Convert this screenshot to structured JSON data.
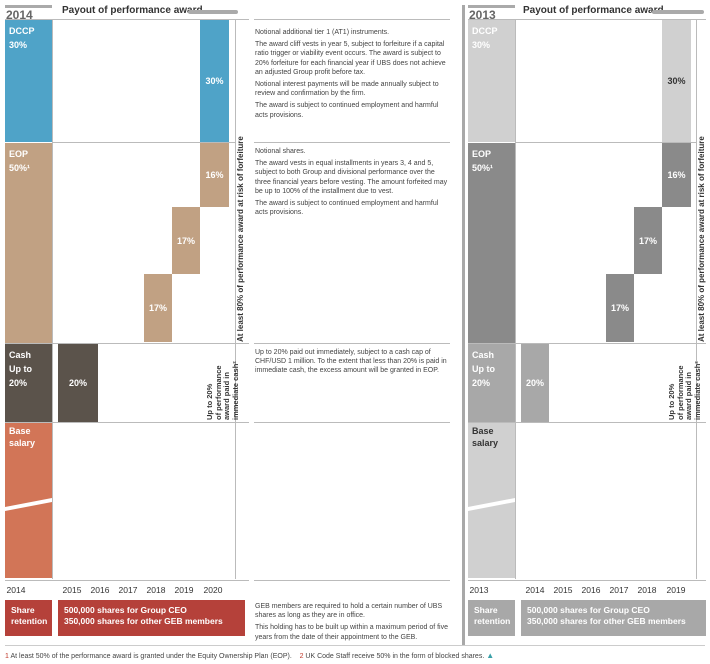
{
  "left": {
    "year": "2014",
    "title": "Payout of performance award",
    "dccp": {
      "label": "DCCP",
      "pct": "30%",
      "bar": "30%"
    },
    "eop": {
      "label": "EOP",
      "pct": "50%¹",
      "bars": [
        "17%",
        "17%",
        "16%"
      ]
    },
    "cash": {
      "label": "Cash",
      "sub1": "Up to",
      "sub2": "20%",
      "bar": "20%"
    },
    "base": {
      "line1": "Base",
      "line2": "salary"
    },
    "years": [
      "2014",
      "2015",
      "2016",
      "2017",
      "2018",
      "2019",
      "2020"
    ],
    "retention": {
      "label1": "Share",
      "label2": "retention",
      "line1": "500,000 shares for Group CEO",
      "line2": "350,000 shares for other GEB members"
    },
    "vertical_main": "At least 80% of performance award at risk of forfeiture",
    "vertical_cash1": "Up to 20%",
    "vertical_cash2": "of performance",
    "vertical_cash3": "award paid in",
    "vertical_cash4": "immediate cash²"
  },
  "right": {
    "year": "2013",
    "title": "Payout of performance award",
    "dccp": {
      "label": "DCCP",
      "pct": "30%",
      "bar": "30%"
    },
    "eop": {
      "label": "EOP",
      "pct": "50%¹",
      "bars": [
        "17%",
        "17%",
        "16%"
      ]
    },
    "cash": {
      "label": "Cash",
      "sub1": "Up to",
      "sub2": "20%",
      "bar": "20%"
    },
    "base": {
      "line1": "Base",
      "line2": "salary"
    },
    "years": [
      "2013",
      "2014",
      "2015",
      "2016",
      "2017",
      "2018",
      "2019"
    ],
    "retention": {
      "label1": "Share",
      "label2": "retention",
      "line1": "500,000 shares for Group CEO",
      "line2": "350,000 shares for other GEB members"
    },
    "vertical_main": "At least 80% of performance award at risk of forfeiture",
    "vertical_cash1": "Up to 20%",
    "vertical_cash2": "of performance",
    "vertical_cash3": "award paid in",
    "vertical_cash4": "immediate cash²"
  },
  "descriptions": {
    "dccp": [
      "Notional additional tier 1 (AT1) instruments.",
      "The award cliff vests in year 5, subject to forfeiture if a capital ratio trigger or viability event occurs. The award is subject to 20% forfeiture for each financial year if UBS does not achieve an adjusted Group profit before tax.",
      "Notional interest payments will be made annually subject to review and confirmation by the firm.",
      "The award is subject to continued employment and harmful acts provisions."
    ],
    "eop": [
      "Notional shares.",
      "The award vests in equal installments in years 3, 4 and 5, subject to both Group and divisional performance over the three financial years before vesting. The amount forfeited may be up to 100% of the installment due to vest.",
      "The award is subject to continued employment and harmful acts provisions."
    ],
    "cash": [
      "Up to 20% paid out immediately, subject to a cash cap of CHF/USD 1 million. To the extent that less than 20% is paid in immediate cash, the excess amount will be granted in EOP."
    ],
    "retention": [
      "GEB members are required to hold a certain number of UBS shares as long as they are in office.",
      "This holding has to be built up within a maximum period of five years from the date of their appointment to the GEB."
    ]
  },
  "footnotes": {
    "n1": "1",
    "t1": "At least 50% of the performance award is granted under the Equity Ownership Plan (EOP).",
    "n2": "2",
    "t2": "UK Code Staff receive 50% in the form of blocked shares."
  },
  "colors": {
    "dccp_blue": "#4fa3c8",
    "eop_tan": "#c1a183",
    "cash_dark": "#5b534b",
    "base_orange": "#d27557",
    "retention_red": "#b5413a",
    "gray_light": "#d0d0d0",
    "gray_mid": "#a8a8a8",
    "gray_dark": "#8a8a8a"
  }
}
